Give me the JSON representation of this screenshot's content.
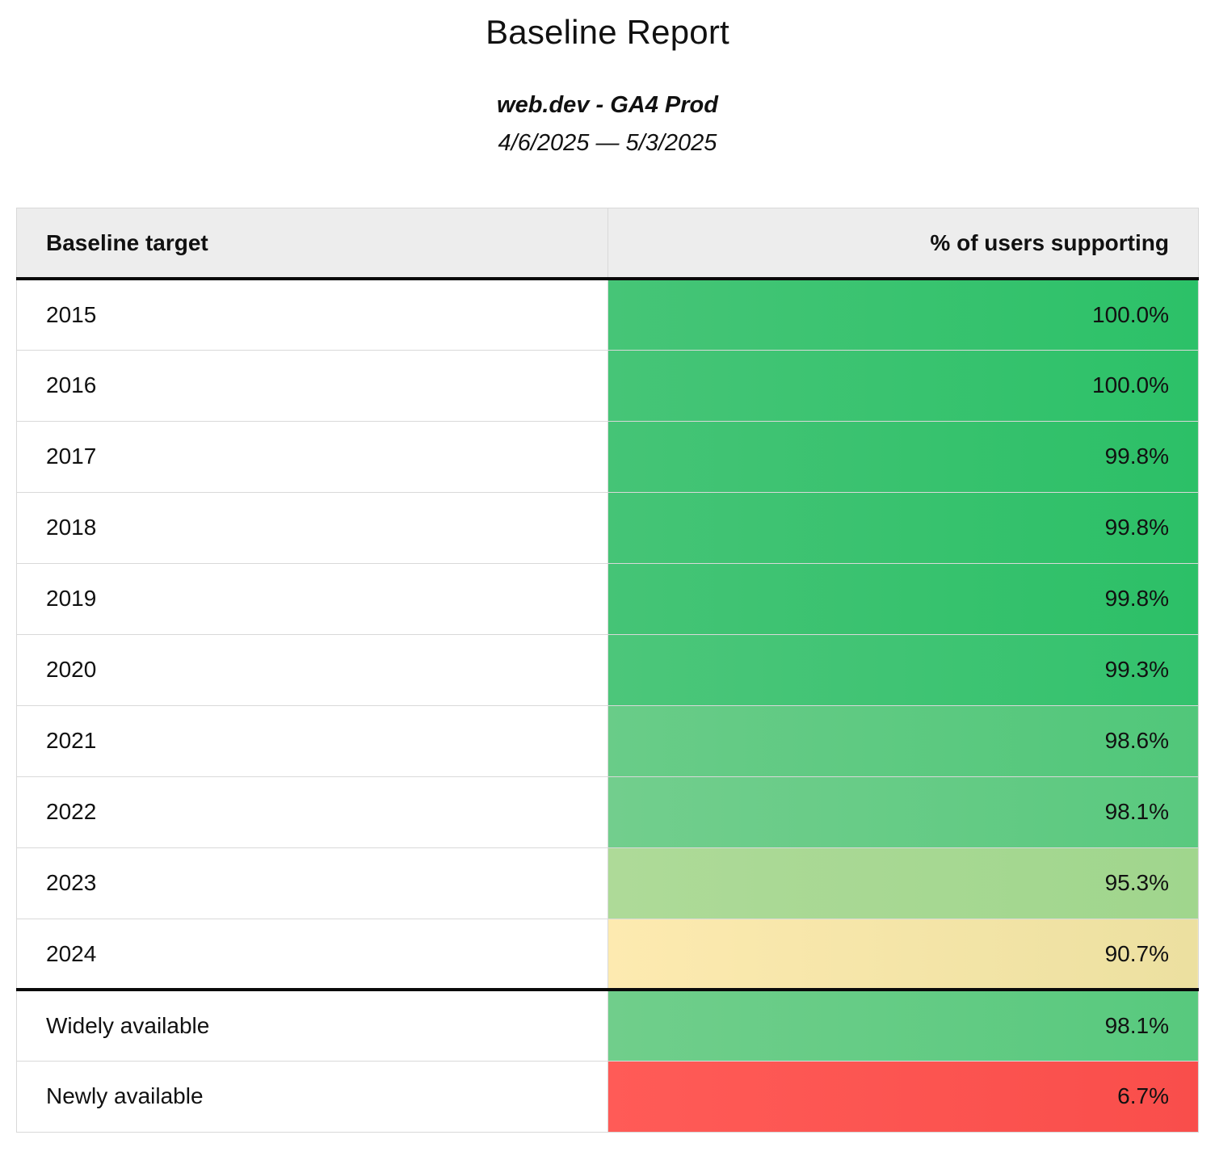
{
  "report": {
    "title": "Baseline Report",
    "subtitle": "web.dev - GA4 Prod",
    "date_range": "4/6/2025 — 5/3/2025"
  },
  "table": {
    "columns": [
      {
        "label": "Baseline target",
        "align": "left"
      },
      {
        "label": "% of users supporting",
        "align": "right"
      }
    ],
    "rows": [
      {
        "target": "2015",
        "value": "100.0%",
        "bg_left": "#46c577",
        "bg_right": "#2cc168",
        "separator_above": false
      },
      {
        "target": "2016",
        "value": "100.0%",
        "bg_left": "#46c577",
        "bg_right": "#2cc168",
        "separator_above": false
      },
      {
        "target": "2017",
        "value": "99.8%",
        "bg_left": "#45c476",
        "bg_right": "#2cc067",
        "separator_above": false
      },
      {
        "target": "2018",
        "value": "99.8%",
        "bg_left": "#45c476",
        "bg_right": "#2cc067",
        "separator_above": false
      },
      {
        "target": "2019",
        "value": "99.8%",
        "bg_left": "#45c476",
        "bg_right": "#2cc067",
        "separator_above": false
      },
      {
        "target": "2020",
        "value": "99.3%",
        "bg_left": "#4cc67a",
        "bg_right": "#33c26d",
        "separator_above": false
      },
      {
        "target": "2021",
        "value": "98.6%",
        "bg_left": "#69cc88",
        "bg_right": "#51c77a",
        "separator_above": false
      },
      {
        "target": "2022",
        "value": "98.1%",
        "bg_left": "#72ce8d",
        "bg_right": "#5ac97f",
        "separator_above": false
      },
      {
        "target": "2023",
        "value": "95.3%",
        "bg_left": "#aeda98",
        "bg_right": "#a0d68d",
        "separator_above": false
      },
      {
        "target": "2024",
        "value": "90.7%",
        "bg_left": "#fdeab0",
        "bg_right": "#ece0a0",
        "separator_above": false
      },
      {
        "target": "Widely available",
        "value": "98.1%",
        "bg_left": "#70ce8b",
        "bg_right": "#58c97e",
        "separator_above": true
      },
      {
        "target": "Newly available",
        "value": "6.7%",
        "bg_left": "#ff5b57",
        "bg_right": "#f94e4b",
        "separator_above": false
      }
    ],
    "colors": {
      "header_bg": "#ededed",
      "grid_border": "#d9d9d9",
      "separator": "#0a0a0a"
    }
  },
  "chart_data": {
    "type": "table",
    "title": "Baseline Report",
    "subtitle": "web.dev - GA4 Prod",
    "date_range": "4/6/2025 — 5/3/2025",
    "columns": [
      "Baseline target",
      "% of users supporting"
    ],
    "categories": [
      "2015",
      "2016",
      "2017",
      "2018",
      "2019",
      "2020",
      "2021",
      "2022",
      "2023",
      "2024",
      "Widely available",
      "Newly available"
    ],
    "values": [
      100.0,
      100.0,
      99.8,
      99.8,
      99.8,
      99.3,
      98.6,
      98.1,
      95.3,
      90.7,
      98.1,
      6.7
    ],
    "value_unit": "%",
    "layout": "two-column table, value column color-coded green (high) to yellow to red (low); thick black rule below header and above 'Widely available' row"
  }
}
